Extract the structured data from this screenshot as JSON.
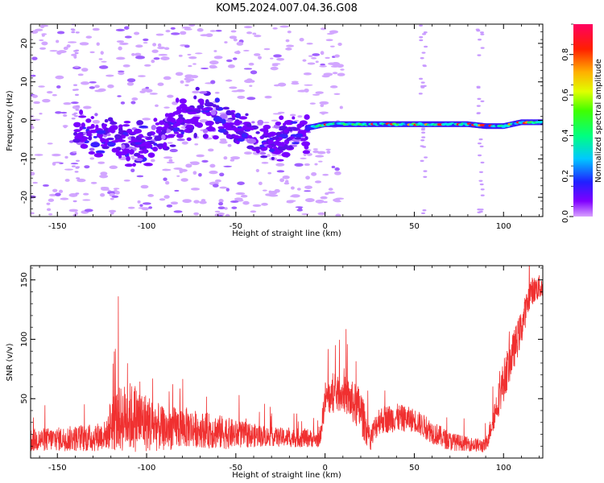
{
  "title": "KOM5.2024.007.04.36.G08",
  "chart_data": [
    {
      "type": "heatmap",
      "xlabel": "Height of straight line (km)",
      "ylabel": "Frequency (Hz)",
      "xlim": [
        -165,
        122
      ],
      "ylim": [
        -25,
        25
      ],
      "x_ticks": [
        -150,
        -100,
        -50,
        0,
        50,
        100
      ],
      "y_ticks": [
        -20,
        -10,
        0,
        10,
        20
      ],
      "colorbar": {
        "label": "Normalized spectral amplitude",
        "range": [
          0,
          0.95
        ],
        "ticks": [
          0.0,
          0.2,
          0.4,
          0.6,
          0.8
        ],
        "colormap": "gist_rainbow_r",
        "below_threshold_color": "#ffffff"
      },
      "ridge": {
        "x": [
          -165,
          -140,
          -120,
          -110,
          -100,
          -90,
          -80,
          -70,
          -60,
          -50,
          -40,
          -30,
          -20,
          -10,
          0,
          20,
          40,
          60,
          80,
          90,
          100,
          110,
          122
        ],
        "frequency": [
          -2,
          -3,
          -4,
          -6,
          -7,
          -3,
          0,
          2,
          1,
          -1,
          -5,
          -6,
          -4,
          -2,
          -1,
          -1,
          -1,
          -1,
          -1,
          -1.5,
          -1.5,
          -0.5,
          -0.5
        ]
      }
    },
    {
      "type": "line",
      "xlabel": "Height of straight line (km)",
      "ylabel": "SNR (v/v)",
      "xlim": [
        -165,
        122
      ],
      "ylim": [
        0,
        162
      ],
      "x_ticks": [
        -150,
        -100,
        -50,
        0,
        50,
        100
      ],
      "y_ticks": [
        50,
        100,
        150
      ],
      "series": [
        {
          "color": "#f03030",
          "envelope_x": [
            -165,
            -150,
            -130,
            -122,
            -120,
            -110,
            -100,
            -90,
            -80,
            -70,
            -60,
            -50,
            -40,
            -30,
            -20,
            -10,
            -3,
            0,
            10,
            20,
            25,
            30,
            40,
            50,
            60,
            70,
            80,
            90,
            100,
            110,
            115,
            122
          ],
          "envelope_mean": [
            15,
            16,
            17,
            20,
            30,
            35,
            30,
            24,
            26,
            24,
            22,
            20,
            19,
            18,
            17,
            17,
            15,
            50,
            55,
            40,
            15,
            32,
            34,
            32,
            22,
            14,
            12,
            10,
            65,
            110,
            140,
            145
          ],
          "envelope_amp": [
            10,
            10,
            12,
            12,
            25,
            30,
            25,
            18,
            18,
            15,
            15,
            12,
            10,
            8,
            8,
            8,
            6,
            15,
            15,
            20,
            10,
            12,
            12,
            10,
            10,
            8,
            6,
            6,
            18,
            15,
            12,
            10
          ]
        }
      ]
    }
  ]
}
